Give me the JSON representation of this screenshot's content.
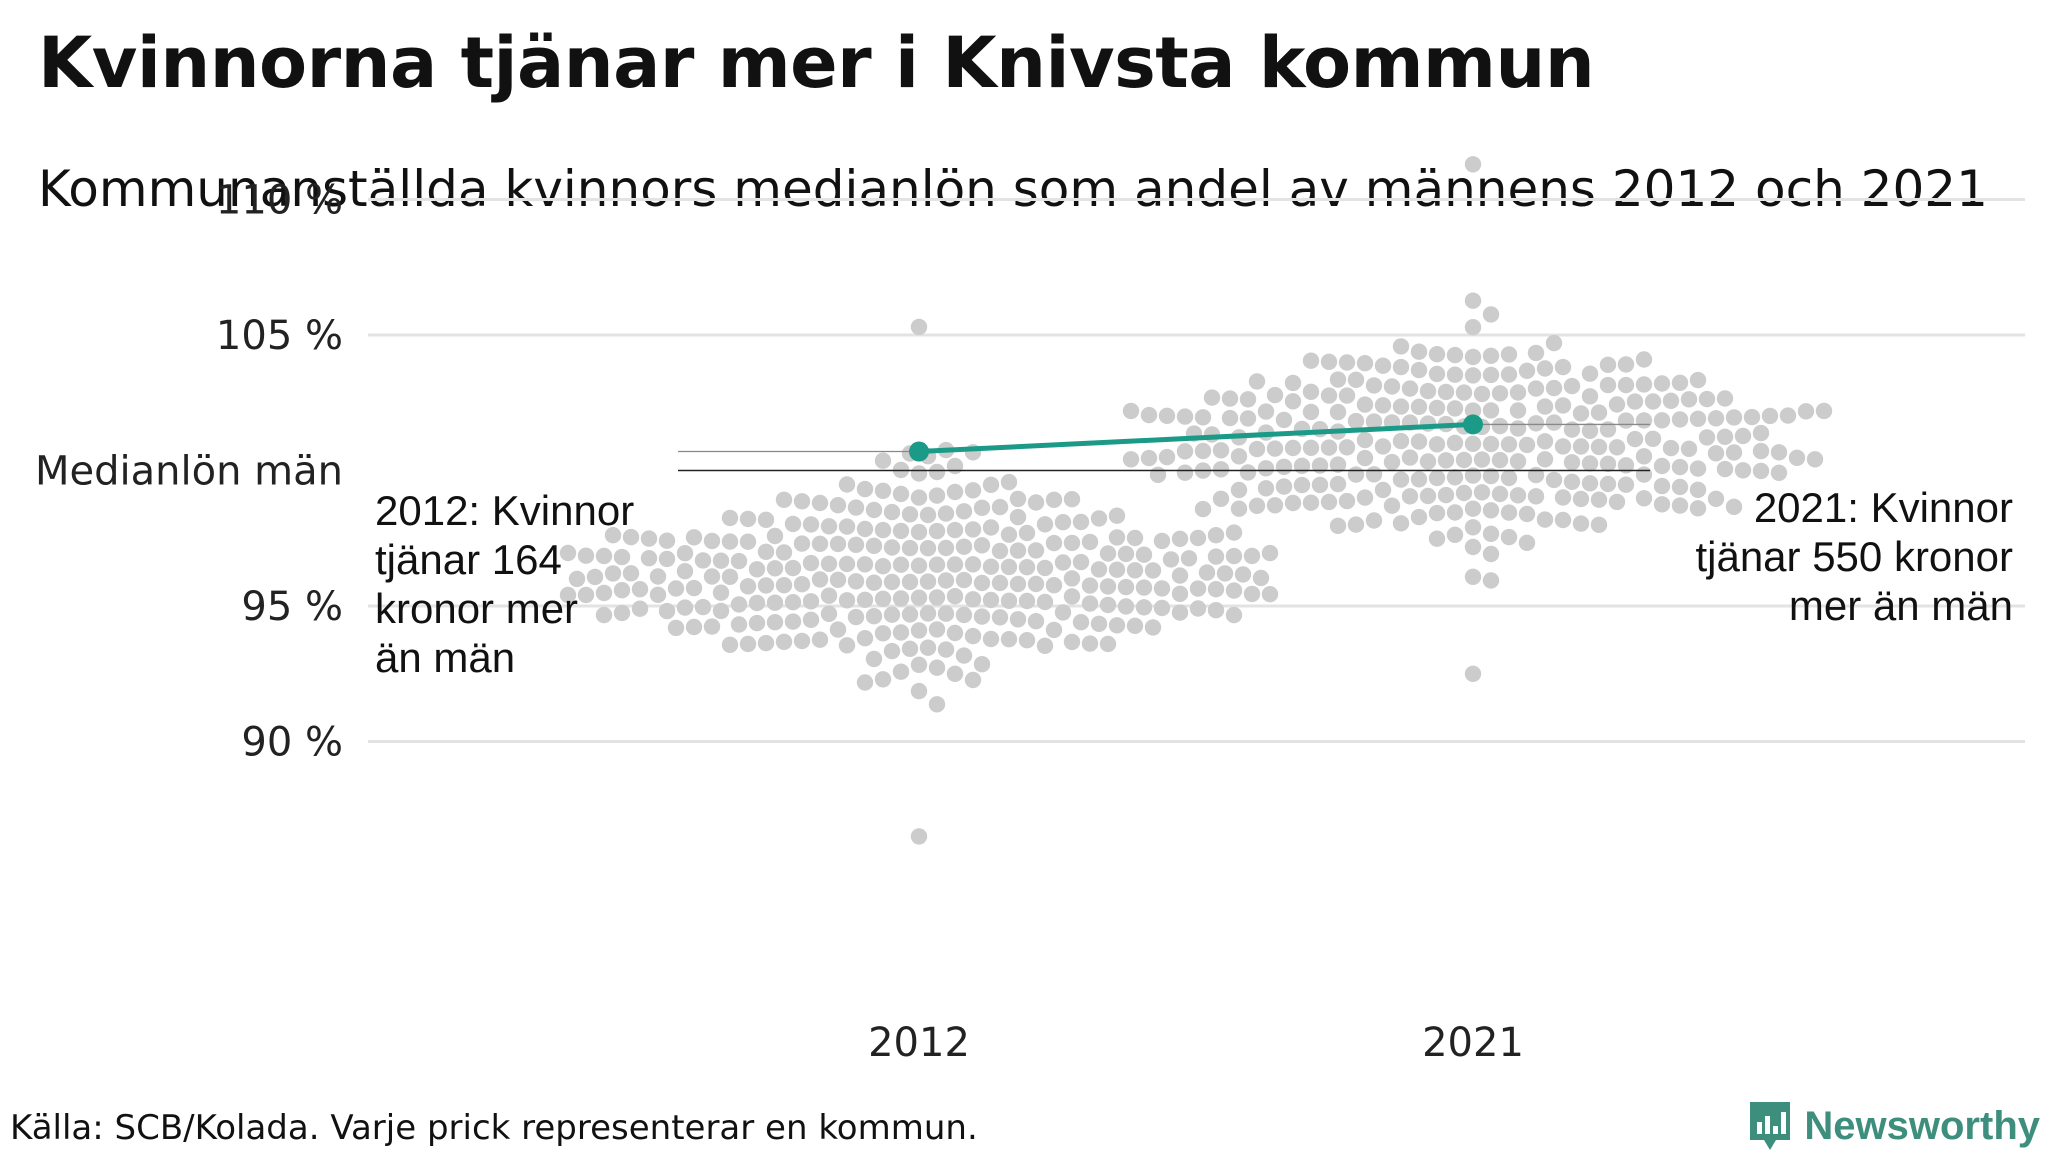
{
  "title": "Kvinnorna tjänar mer i Knivsta kommun",
  "subtitle": "Kommunanställda kvinnors medianlön som andel av männens 2012 och 2021",
  "source": "Källa: SCB/Kolada. Varje prick representerar en kommun.",
  "brand": "Newsworthy",
  "colors": {
    "dots": "#cccccc",
    "highlight": "#1b9a88",
    "grid": "#e3e3e3",
    "reference": "#222222",
    "brand": "#3e8e7e"
  },
  "chart_data": {
    "type": "scatter",
    "subtype": "beeswarm",
    "categories": [
      "2012",
      "2021"
    ],
    "y_ticks": [
      {
        "value": 110,
        "label": "110 %"
      },
      {
        "value": 105,
        "label": "105 %"
      },
      {
        "value": 100,
        "label": "Medianlön män"
      },
      {
        "value": 95,
        "label": "95 %"
      },
      {
        "value": 90,
        "label": "90 %"
      }
    ],
    "ylim": [
      86,
      112
    ],
    "reference_line": {
      "value": 100,
      "label": "Medianlön män"
    },
    "distribution_summary": {
      "2012": {
        "min": 86.5,
        "max": 105.3,
        "median": 96.5
      },
      "2021": {
        "min": 92.5,
        "max": 111.3,
        "median": 101.0
      }
    },
    "highlight": {
      "name": "Knivsta",
      "values": [
        {
          "x": "2012",
          "y": 100.7
        },
        {
          "x": "2021",
          "y": 101.7
        }
      ]
    },
    "annotations": [
      {
        "year": "2012",
        "lines": [
          "2012: Kvinnor",
          "tjänar 164",
          "kronor mer",
          "än män"
        ]
      },
      {
        "year": "2021",
        "lines": [
          "2021: Kvinnor",
          "tjänar 550 kronor",
          "mer än män"
        ]
      }
    ],
    "grid": true
  }
}
